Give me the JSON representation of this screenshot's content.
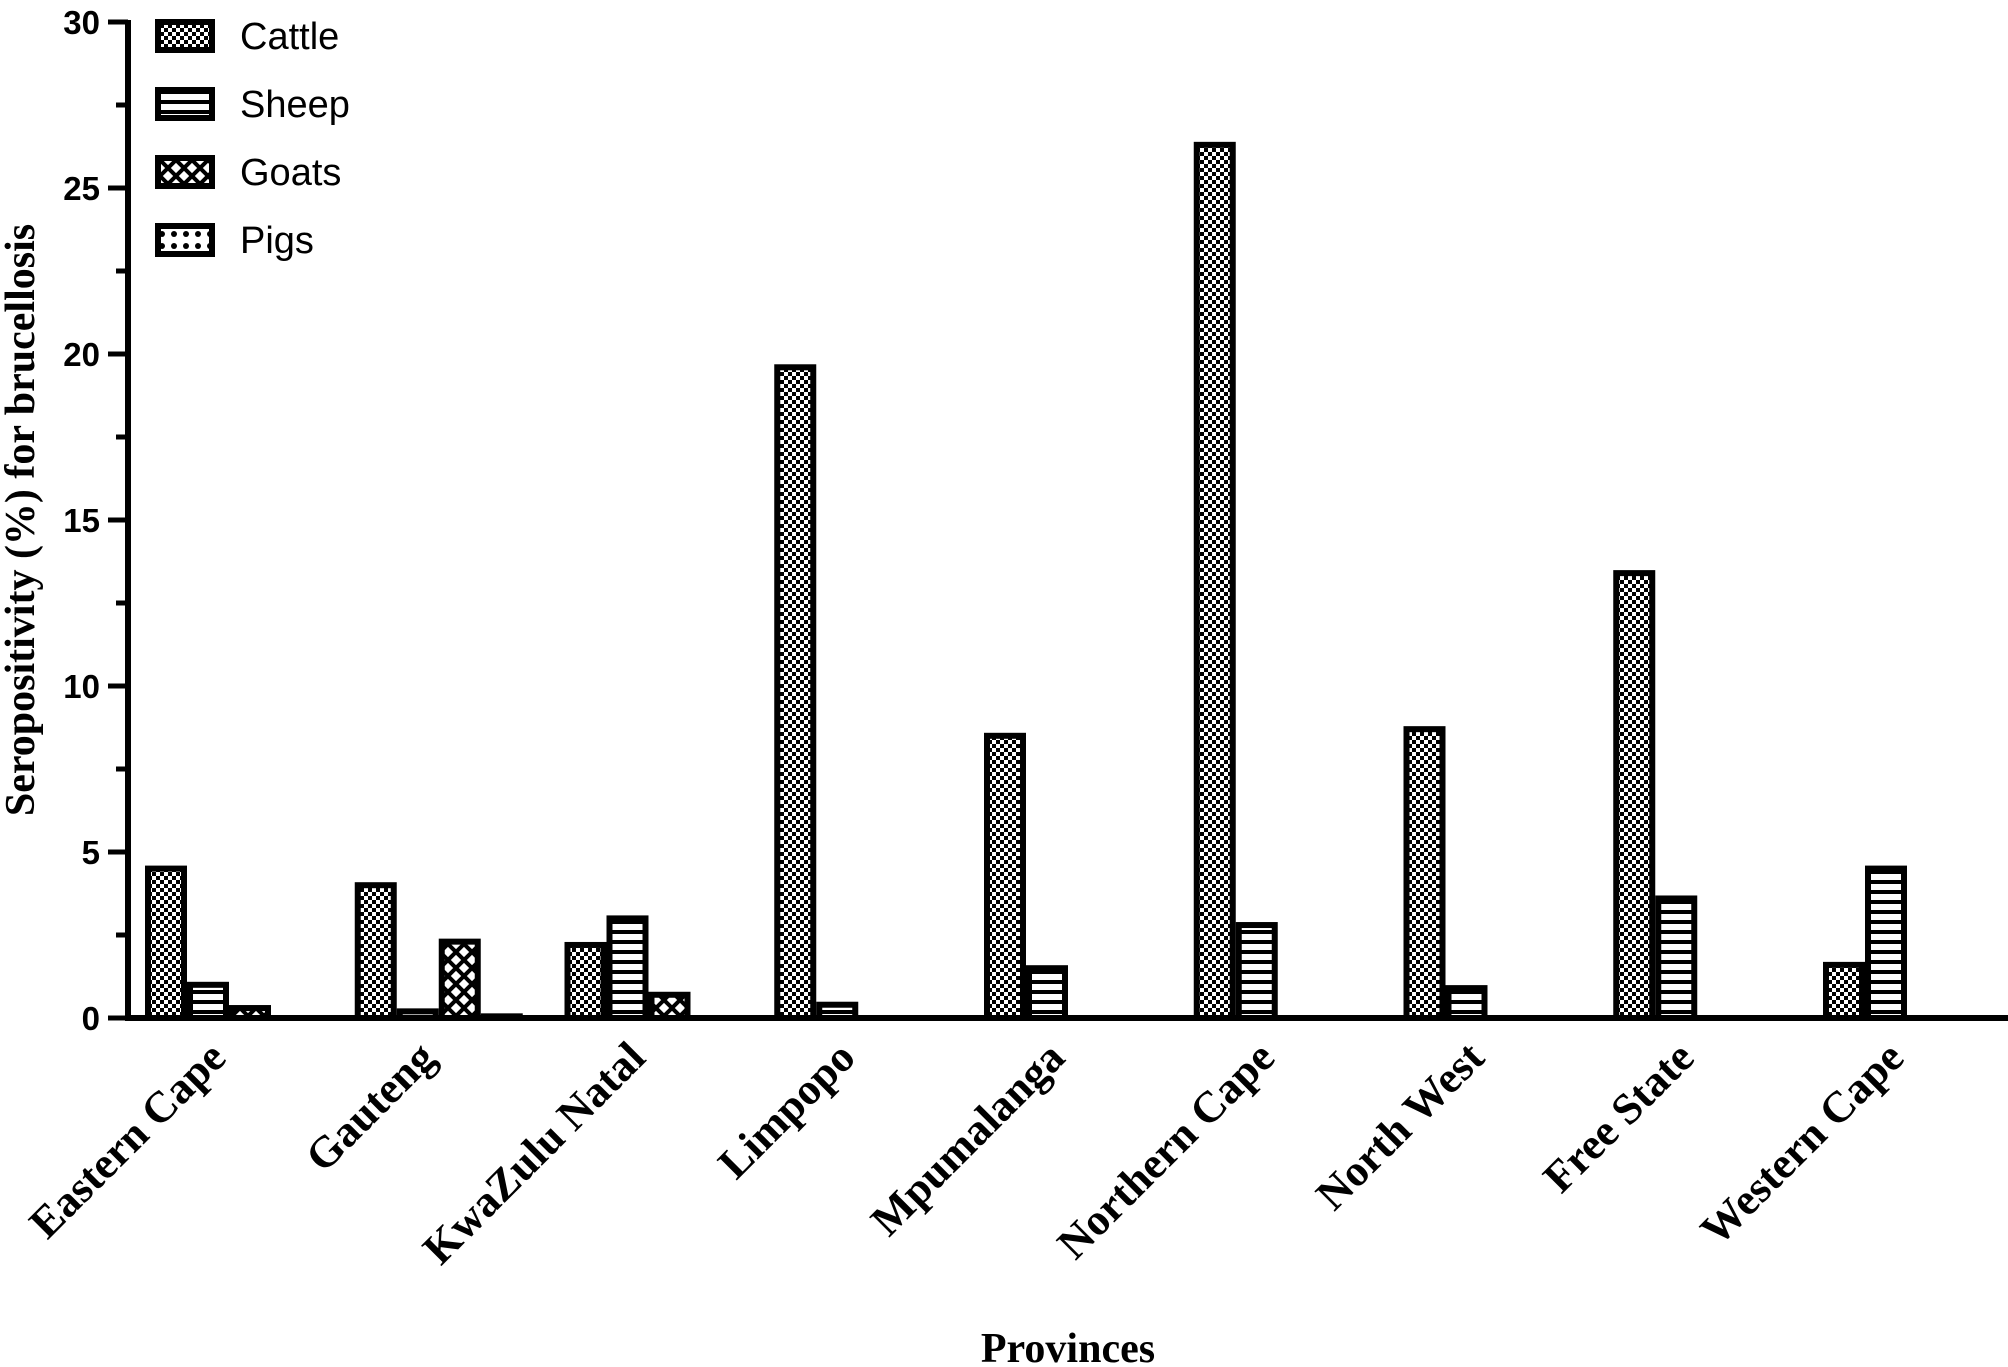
{
  "chart_data": {
    "type": "bar",
    "title": "",
    "xlabel": "Provinces",
    "ylabel": "Seropositivity (%) for brucellosis",
    "ylim": [
      0,
      30
    ],
    "yticks": [
      "0",
      "5",
      "10",
      "15",
      "20",
      "25",
      "30"
    ],
    "categories": [
      "Eastern Cape",
      "Gauteng",
      "KwaZulu Natal",
      "Limpopo",
      "Mpumalanga",
      "Northern Cape",
      "North West",
      "Free State",
      "Western Cape"
    ],
    "series": [
      {
        "name": "Cattle",
        "pattern": "checker",
        "values": [
          4.5,
          4.0,
          2.2,
          19.6,
          8.5,
          26.3,
          8.7,
          13.4,
          1.6
        ]
      },
      {
        "name": "Sheep",
        "pattern": "hstripes",
        "values": [
          1.0,
          0.2,
          3.0,
          0.4,
          1.5,
          2.8,
          0.9,
          3.6,
          4.5
        ]
      },
      {
        "name": "Goats",
        "pattern": "crosshatch",
        "values": [
          0.3,
          2.3,
          0.7,
          0,
          0,
          0,
          0,
          0,
          0
        ]
      },
      {
        "name": "Pigs",
        "pattern": "dots",
        "values": [
          0,
          0.05,
          0,
          0,
          0,
          0,
          0,
          0,
          0
        ]
      }
    ],
    "grid": false,
    "legend_position": "top-left",
    "colors": {
      "bar_fill": "#ffffff",
      "bar_stroke": "#000000",
      "axis": "#000000"
    }
  }
}
